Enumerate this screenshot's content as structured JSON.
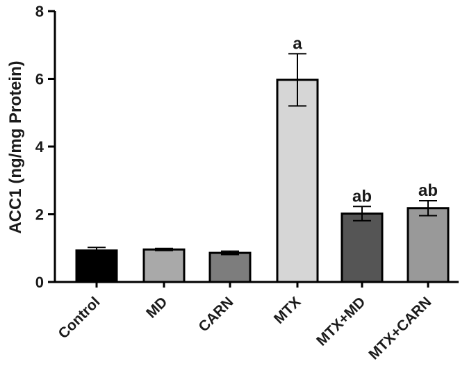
{
  "chart_data": {
    "type": "bar",
    "ylabel": "ACC1 (ng/mg Protein)",
    "xlabel": "",
    "ylim": [
      0,
      8
    ],
    "yticks": [
      0,
      2,
      4,
      6,
      8
    ],
    "grid": false,
    "categories": [
      "Control",
      "MD",
      "CARN",
      "MTX",
      "MTX+MD",
      "MTX+CARN"
    ],
    "values": [
      0.93,
      0.96,
      0.86,
      5.97,
      2.02,
      2.18
    ],
    "errors": [
      0.09,
      0.03,
      0.05,
      0.77,
      0.21,
      0.22
    ],
    "annotations": [
      "",
      "",
      "",
      "a",
      "ab",
      "ab"
    ],
    "bar_colors": [
      "#000000",
      "#a9a9a9",
      "#7d7d7d",
      "#d6d6d6",
      "#555555",
      "#999999"
    ]
  }
}
